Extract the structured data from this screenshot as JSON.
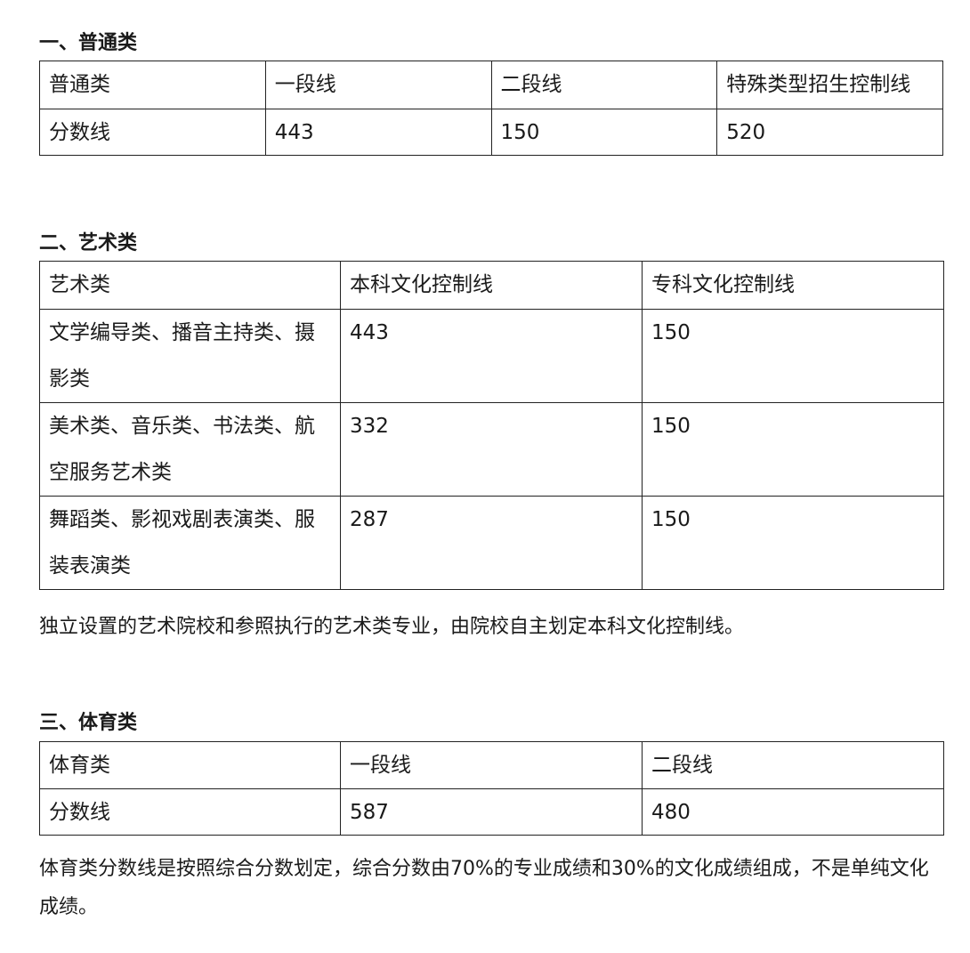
{
  "section1": {
    "heading": "一、普通类",
    "header": [
      "普通类",
      "一段线",
      "二段线",
      "特殊类型招生控制线"
    ],
    "rows": [
      [
        "分数线",
        "443",
        "150",
        "520"
      ]
    ]
  },
  "section2": {
    "heading": "二、艺术类",
    "header": [
      "艺术类",
      "本科文化控制线",
      "专科文化控制线"
    ],
    "rows": [
      [
        "文学编导类、播音主持类、摄影类",
        "443",
        "150"
      ],
      [
        "美术类、音乐类、书法类、航空服务艺术类",
        "332",
        "150"
      ],
      [
        "舞蹈类、影视戏剧表演类、服装表演类",
        "287",
        "150"
      ]
    ],
    "note": "独立设置的艺术院校和参照执行的艺术类专业，由院校自主划定本科文化控制线。"
  },
  "section3": {
    "heading": "三、体育类",
    "header": [
      "体育类",
      "一段线",
      "二段线"
    ],
    "rows": [
      [
        "分数线",
        "587",
        "480"
      ]
    ],
    "note": "体育类分数线是按照综合分数划定，综合分数由70%的专业成绩和30%的文化成绩组成，不是单纯文化成绩。"
  }
}
